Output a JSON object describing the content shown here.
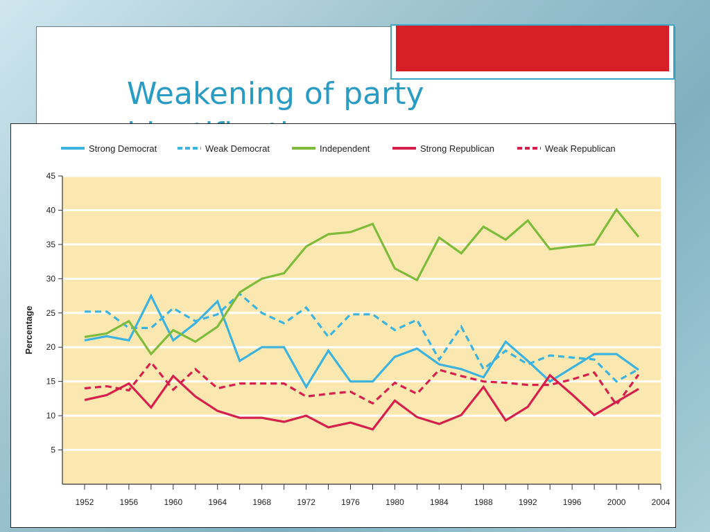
{
  "slide": {
    "title": "Weakening of party identification"
  },
  "colors": {
    "plot_background": "#fbe8b0",
    "strong_democrat": "#3cb3df",
    "weak_democrat": "#3cb3df",
    "independent": "#7fbb3a",
    "strong_republican": "#d51f4c",
    "weak_republican": "#d51f4c",
    "accent_red": "#d71f27",
    "title": "#2a9cc3"
  },
  "chart_data": {
    "type": "line",
    "title": "",
    "xlabel": "",
    "ylabel": "Percentage",
    "xlim": [
      1950,
      2004
    ],
    "ylim": [
      0,
      45
    ],
    "x_ticks": [
      1952,
      1956,
      1960,
      1964,
      1968,
      1972,
      1976,
      1980,
      1984,
      1988,
      1992,
      1996,
      2000,
      2004
    ],
    "y_ticks": [
      5,
      10,
      15,
      20,
      25,
      30,
      35,
      40,
      45
    ],
    "grid": true,
    "legend_position": "top",
    "x": [
      1952,
      1954,
      1956,
      1958,
      1960,
      1962,
      1964,
      1966,
      1968,
      1970,
      1972,
      1974,
      1976,
      1978,
      1980,
      1982,
      1984,
      1986,
      1988,
      1990,
      1992,
      1994,
      1996,
      1998,
      2000,
      2002
    ],
    "series": [
      {
        "name": "Strong Democrat",
        "key": "strong_democrat",
        "style": "solid",
        "values": [
          21,
          21.6,
          21,
          27.5,
          21,
          23.5,
          26.7,
          18,
          20,
          20,
          14.2,
          19.5,
          15,
          15,
          18.6,
          19.8,
          17.5,
          16.8,
          15.6,
          20.8,
          18,
          15,
          17,
          19,
          19,
          16.7
        ]
      },
      {
        "name": "Weak Democrat",
        "key": "weak_democrat",
        "style": "dashed",
        "values": [
          25.2,
          25.2,
          22.8,
          22.8,
          25.7,
          23.8,
          24.8,
          27.8,
          25,
          23.5,
          25.8,
          21.5,
          24.8,
          24.8,
          22.5,
          24,
          18.2,
          23,
          16.8,
          19.5,
          17.5,
          18.8,
          18.5,
          18.2,
          15,
          16.8
        ]
      },
      {
        "name": "Independent",
        "key": "independent",
        "style": "solid",
        "values": [
          21.5,
          22,
          23.8,
          19,
          22.5,
          20.8,
          23,
          28,
          30,
          30.8,
          34.7,
          36.5,
          36.8,
          38,
          31.5,
          29.8,
          36,
          33.7,
          37.6,
          35.7,
          38.5,
          34.3,
          34.7,
          35,
          40.1,
          36.1
        ]
      },
      {
        "name": "Strong Republican",
        "key": "strong_republican",
        "style": "solid",
        "values": [
          12.3,
          13,
          14.7,
          11.2,
          15.8,
          12.8,
          10.7,
          9.7,
          9.7,
          9.1,
          10,
          8.3,
          9,
          8,
          12.2,
          9.8,
          8.8,
          10.1,
          14.2,
          9.3,
          11.3,
          15.9,
          13.1,
          10.1,
          12,
          13.9
        ]
      },
      {
        "name": "Weak Republican",
        "key": "weak_republican",
        "style": "dashed",
        "values": [
          14,
          14.3,
          13.7,
          17.8,
          13.8,
          16.8,
          14,
          14.7,
          14.7,
          14.7,
          12.8,
          13.2,
          13.5,
          11.8,
          14.8,
          13.2,
          16.7,
          15.8,
          15,
          14.8,
          14.5,
          14.5,
          15.3,
          16.3,
          11.6,
          16
        ]
      }
    ]
  }
}
